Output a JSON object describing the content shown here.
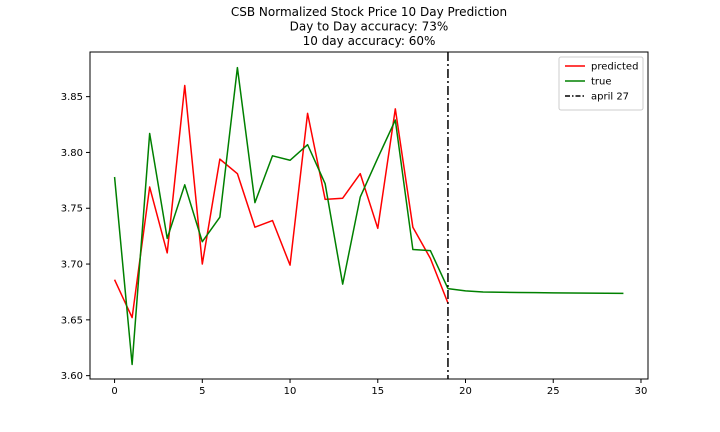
{
  "chart_data": {
    "type": "line",
    "title_lines": [
      "CSB Normalized Stock Price 10 Day Prediction",
      "Day to Day accuracy: 73%",
      "10 day accuracy: 60%"
    ],
    "xlabel": "",
    "ylabel": "",
    "xlim": [
      -1.4,
      30.4
    ],
    "ylim": [
      3.597,
      3.89
    ],
    "xticks": [
      0,
      5,
      10,
      15,
      20,
      25,
      30
    ],
    "yticks": [
      3.6,
      3.65,
      3.7,
      3.75,
      3.8,
      3.85
    ],
    "ytick_labels": [
      "3.60",
      "3.65",
      "3.70",
      "3.75",
      "3.80",
      "3.85"
    ],
    "grid": false,
    "legend_position": "top-right",
    "series": [
      {
        "name": "predicted",
        "color": "#ff0000",
        "x": [
          0,
          1,
          2,
          3,
          4,
          5,
          6,
          7,
          8,
          9,
          10,
          11,
          12,
          13,
          14,
          15,
          16,
          17,
          18,
          19
        ],
        "y": [
          3.686,
          3.652,
          3.769,
          3.71,
          3.86,
          3.7,
          3.794,
          3.781,
          3.733,
          3.739,
          3.699,
          3.835,
          3.758,
          3.759,
          3.781,
          3.732,
          3.839,
          3.733,
          3.705,
          3.665
        ]
      },
      {
        "name": "true",
        "color": "#008000",
        "x": [
          0,
          1,
          2,
          3,
          4,
          5,
          6,
          7,
          8,
          9,
          10,
          11,
          12,
          13,
          14,
          15,
          16,
          17,
          18,
          19,
          20,
          21,
          22,
          23,
          24,
          25,
          26,
          27,
          28,
          29
        ],
        "y": [
          3.778,
          3.61,
          3.817,
          3.723,
          3.771,
          3.72,
          3.742,
          3.876,
          3.755,
          3.797,
          3.793,
          3.807,
          3.772,
          3.682,
          3.76,
          3.795,
          3.829,
          3.713,
          3.712,
          3.678,
          3.676,
          3.675,
          3.6747,
          3.6745,
          3.6744,
          3.6742,
          3.674,
          3.6739,
          3.6738,
          3.6737
        ]
      }
    ],
    "vline": {
      "name": "april 27",
      "x": 19,
      "color": "#000000",
      "style": "dashdot"
    }
  }
}
